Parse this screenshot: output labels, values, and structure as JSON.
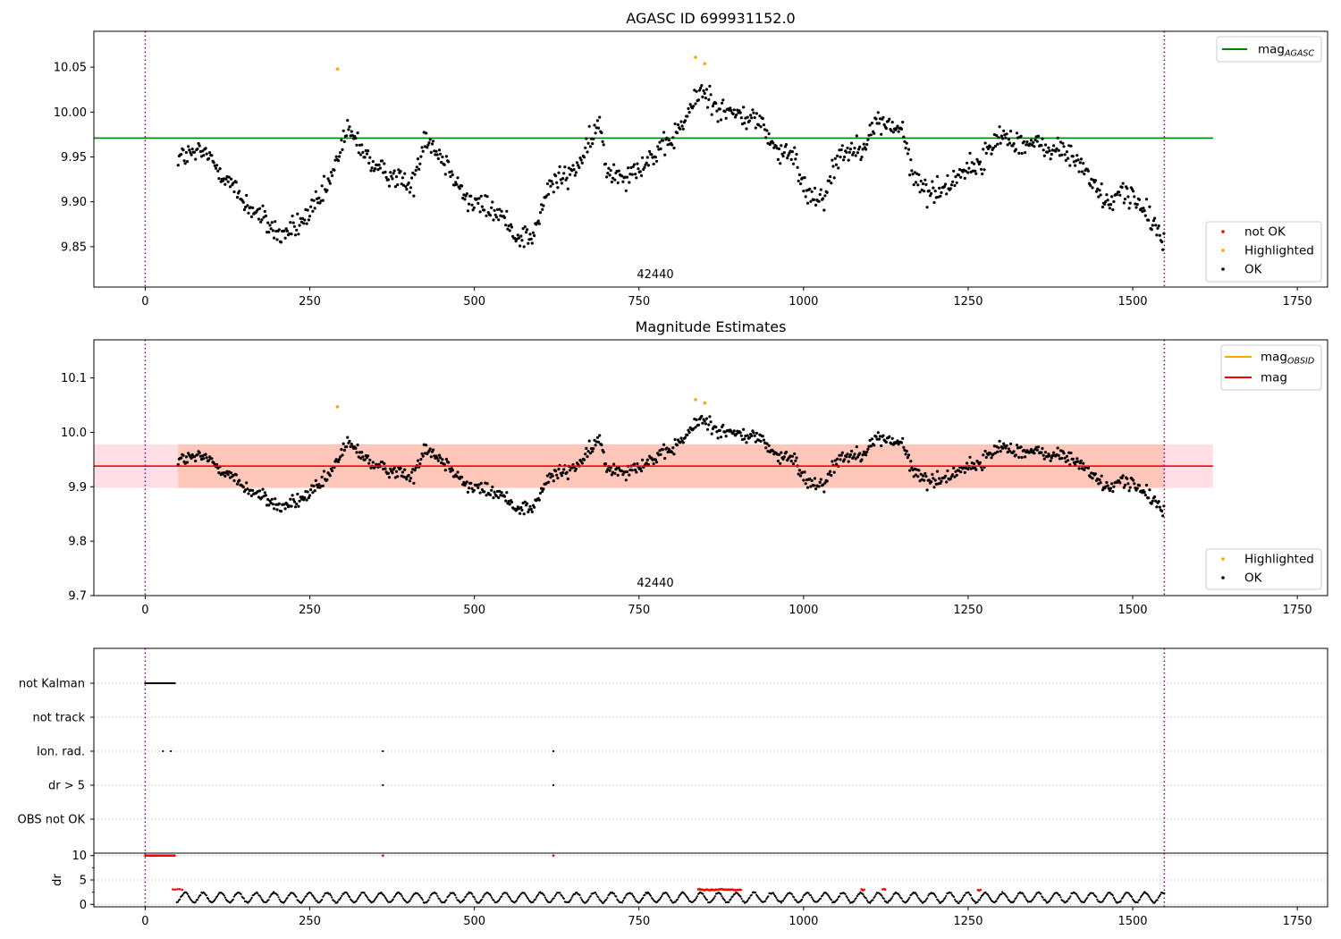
{
  "chart_data": [
    {
      "type": "scatter",
      "title": "AGASC ID 699931152.0",
      "ylim": [
        9.805,
        10.09
      ],
      "xlim": [
        -78,
        1796
      ],
      "xticks": [
        0,
        250,
        500,
        750,
        1000,
        1250,
        1500,
        1750
      ],
      "yticks": [
        9.85,
        9.9,
        9.95,
        10.0,
        10.05
      ],
      "ytick_labels": [
        "9.85",
        "9.90",
        "9.95",
        "10.00",
        "10.05"
      ],
      "obsid_label": "42440",
      "obs_bounds": [
        0,
        1548
      ],
      "legend_upper": [
        {
          "label": "mag",
          "subscript": "AGASC",
          "color": "#008000",
          "kind": "line"
        }
      ],
      "legend_lower": [
        {
          "label": "not OK",
          "color": "#ff0000",
          "kind": "dot"
        },
        {
          "label": "Highlighted",
          "color": "#ffa500",
          "kind": "dot"
        },
        {
          "label": "OK",
          "color": "#000000",
          "kind": "dot"
        }
      ],
      "reference_line": {
        "y": 9.971,
        "x": [
          -78,
          1622
        ],
        "color": "#008000"
      },
      "highlighted_points": [
        [
          292,
          10.048
        ],
        [
          836,
          10.061
        ],
        [
          850,
          10.054
        ]
      ],
      "series_trend": [
        [
          50,
          9.95
        ],
        [
          90,
          9.955
        ],
        [
          120,
          9.93
        ],
        [
          150,
          9.9
        ],
        [
          180,
          9.88
        ],
        [
          205,
          9.862
        ],
        [
          235,
          9.875
        ],
        [
          265,
          9.9
        ],
        [
          285,
          9.93
        ],
        [
          305,
          9.98
        ],
        [
          330,
          9.96
        ],
        [
          350,
          9.935
        ],
        [
          380,
          9.93
        ],
        [
          405,
          9.915
        ],
        [
          425,
          9.975
        ],
        [
          450,
          9.95
        ],
        [
          470,
          9.93
        ],
        [
          490,
          9.9
        ],
        [
          515,
          9.895
        ],
        [
          540,
          9.885
        ],
        [
          565,
          9.862
        ],
        [
          590,
          9.862
        ],
        [
          615,
          9.92
        ],
        [
          645,
          9.93
        ],
        [
          670,
          9.955
        ],
        [
          690,
          9.99
        ],
        [
          700,
          9.935
        ],
        [
          730,
          9.93
        ],
        [
          760,
          9.945
        ],
        [
          790,
          9.96
        ],
        [
          815,
          9.985
        ],
        [
          845,
          10.025
        ],
        [
          870,
          10.005
        ],
        [
          905,
          9.995
        ],
        [
          935,
          9.99
        ],
        [
          960,
          9.955
        ],
        [
          985,
          9.95
        ],
        [
          1005,
          9.91
        ],
        [
          1030,
          9.905
        ],
        [
          1055,
          9.955
        ],
        [
          1085,
          9.96
        ],
        [
          1115,
          9.99
        ],
        [
          1150,
          9.98
        ],
        [
          1165,
          9.93
        ],
        [
          1190,
          9.91
        ],
        [
          1215,
          9.915
        ],
        [
          1240,
          9.935
        ],
        [
          1265,
          9.94
        ],
        [
          1300,
          9.975
        ],
        [
          1335,
          9.965
        ],
        [
          1370,
          9.96
        ],
        [
          1400,
          9.955
        ],
        [
          1430,
          9.935
        ],
        [
          1460,
          9.895
        ],
        [
          1490,
          9.915
        ],
        [
          1515,
          9.89
        ],
        [
          1545,
          9.862
        ]
      ],
      "point_step": 1.55,
      "noise": 0.013
    },
    {
      "type": "scatter",
      "title": "Magnitude Estimates",
      "ylim": [
        9.7,
        10.17
      ],
      "xlim": [
        -78,
        1796
      ],
      "xticks": [
        0,
        250,
        500,
        750,
        1000,
        1250,
        1500,
        1750
      ],
      "yticks": [
        9.7,
        9.8,
        9.9,
        10.0,
        10.1
      ],
      "ytick_labels": [
        "9.7",
        "9.8",
        "9.9",
        "10.0",
        "10.1"
      ],
      "obsid_label": "42440",
      "obs_bounds": [
        0,
        1548
      ],
      "legend_upper": [
        {
          "label": "mag",
          "subscript": "OBSID",
          "color": "#ffa500",
          "kind": "line"
        },
        {
          "label": "mag",
          "subscript": "",
          "color": "#ff0000",
          "kind": "line"
        }
      ],
      "legend_lower": [
        {
          "label": "Highlighted",
          "color": "#ffa500",
          "kind": "dot"
        },
        {
          "label": "OK",
          "color": "#000000",
          "kind": "dot"
        }
      ],
      "reference_line": {
        "y": 9.938,
        "x": [
          -78,
          1622
        ],
        "color": "#ff0000"
      },
      "bands": [
        {
          "y": [
            9.898,
            9.978
          ],
          "x": [
            -78,
            1622
          ],
          "color": "#ffc0cb",
          "opacity": 0.5
        },
        {
          "y": [
            9.898,
            9.978
          ],
          "x": [
            50,
            1548
          ],
          "color": "#ffa07a",
          "opacity": 0.4
        }
      ],
      "highlighted_points": [
        [
          292,
          10.047
        ],
        [
          836,
          10.06
        ],
        [
          850,
          10.054
        ]
      ]
    },
    {
      "type": "scatter",
      "flags": [
        "not Kalman",
        "not track",
        "Ion. rad.",
        "dr > 5",
        "OBS not OK"
      ],
      "flag_points": {
        "not Kalman": {
          "range": [
            0,
            46
          ],
          "step": 1.5
        },
        "not track": {
          "range": null,
          "step": 0
        },
        "Ion. rad.": {
          "points": [
            27,
            39,
            361,
            620
          ]
        },
        "dr > 5": {
          "points": [
            361,
            620
          ]
        },
        "OBS not OK": {
          "range": null,
          "step": 0
        }
      },
      "xlim": [
        -78,
        1796
      ],
      "xticks": [
        0,
        250,
        500,
        750,
        1000,
        1250,
        1500,
        1750
      ],
      "obs_bounds": [
        0,
        1548
      ]
    },
    {
      "type": "scatter",
      "ylabel": "dr",
      "ylim": [
        -0.5,
        10.5
      ],
      "yticks": [
        0,
        5,
        10
      ],
      "ytick_labels": [
        "0",
        "5",
        "10"
      ],
      "xlim": [
        -78,
        1796
      ],
      "xticks": [
        0,
        250,
        500,
        750,
        1000,
        1250,
        1500,
        1750
      ],
      "obs_bounds": [
        0,
        1548
      ],
      "red_clusters": [
        {
          "range": [
            0,
            46
          ],
          "y": 10,
          "step": 1.6
        },
        {
          "range": [
            361,
            362
          ],
          "y": 10,
          "step": 2
        },
        {
          "range": [
            620,
            621
          ],
          "y": 10,
          "step": 2
        },
        {
          "range": [
            42,
            56
          ],
          "y": 3.0,
          "step": 3.5
        },
        {
          "range": [
            840,
            906
          ],
          "y": 3.0,
          "step": 1.8
        },
        {
          "range": [
            1088,
            1092
          ],
          "y": 3.0,
          "step": 2
        },
        {
          "range": [
            1120,
            1124
          ],
          "y": 3.1,
          "step": 2
        },
        {
          "range": [
            1265,
            1269
          ],
          "y": 2.9,
          "step": 2
        }
      ],
      "black_range": [
        48,
        1548
      ],
      "black_base": 1.4,
      "black_amp": 1.0
    }
  ]
}
